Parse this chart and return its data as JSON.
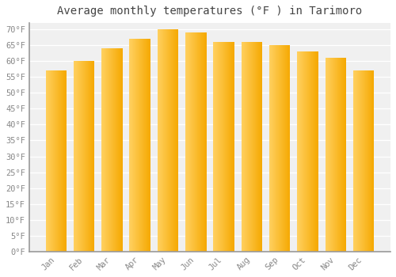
{
  "title": "Average monthly temperatures (°F ) in Tarimoro",
  "months": [
    "Jan",
    "Feb",
    "Mar",
    "Apr",
    "May",
    "Jun",
    "Jul",
    "Aug",
    "Sep",
    "Oct",
    "Nov",
    "Dec"
  ],
  "values": [
    57,
    60,
    64,
    67,
    70,
    69,
    66,
    66,
    65,
    63,
    61,
    57
  ],
  "bar_color_dark": "#F5A800",
  "bar_color_mid": "#FFBB20",
  "bar_color_light": "#FFD060",
  "background_color": "#FFFFFF",
  "plot_background": "#F0F0F0",
  "grid_color": "#FFFFFF",
  "yticks": [
    0,
    5,
    10,
    15,
    20,
    25,
    30,
    35,
    40,
    45,
    50,
    55,
    60,
    65,
    70
  ],
  "ylim": [
    0,
    72
  ],
  "title_fontsize": 10,
  "tick_fontsize": 7.5,
  "font_family": "monospace"
}
